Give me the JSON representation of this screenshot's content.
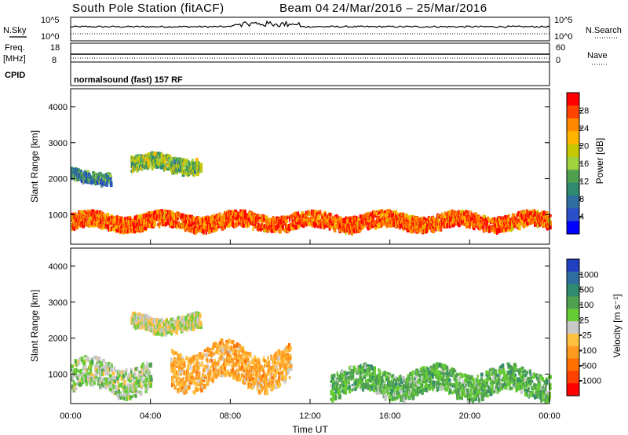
{
  "header": {
    "station": "South Pole Station (fitACF)",
    "beam": "Beam 04",
    "dates": "24/Mar/2016 – 25/Mar/2016"
  },
  "panels": {
    "nsky_label": "N.Sky",
    "nsearch_label": "N.Search",
    "nsky_ticks": [
      "10^5",
      "10^0"
    ],
    "nsearch_ticks": [
      "10^5",
      "10^0"
    ],
    "freq_label": "Freq.",
    "freq_unit": "[MHz]",
    "freq_ticks": [
      "18",
      "8"
    ],
    "nave_label": "Nave",
    "nave_ticks": [
      "60",
      "0"
    ],
    "cpid_label": "CPID",
    "cpid_value": "normalsound (fast) 157 RF"
  },
  "colorbars": {
    "power": {
      "label": "Power [dB]",
      "ticks": [
        "28",
        "24",
        "20",
        "16",
        "12",
        "8",
        "4"
      ],
      "colors": [
        "#ff0000",
        "#ff4400",
        "#ff8800",
        "#ffb400",
        "#c8c800",
        "#a0d240",
        "#50a050",
        "#2f8a70",
        "#2f6fa0",
        "#2a4fc8",
        "#0000ff"
      ]
    },
    "velocity": {
      "label": "Velocity [m s⁻¹]",
      "ticks": [
        "1000",
        "500",
        "100",
        "25",
        "-25",
        "-100",
        "-500",
        "-1000"
      ],
      "colors": [
        "#2040c0",
        "#2f6fa0",
        "#2f8a70",
        "#50a050",
        "#66cc33",
        "#c8c8c8",
        "#ffc040",
        "#ff9a20",
        "#ff7000",
        "#ff4000",
        "#ff0000"
      ]
    }
  },
  "axes": {
    "ylabel": "Slant Range [km]",
    "yticks": [
      "4000",
      "3000",
      "2000",
      "1000"
    ],
    "xlabel": "Time UT",
    "xticks": [
      "00:00",
      "04:00",
      "08:00",
      "12:00",
      "16:00",
      "20:00",
      "00:00"
    ]
  },
  "chart_data": [
    {
      "type": "heatmap",
      "title": "",
      "xlabel": "Time UT",
      "ylabel": "Slant Range [km]",
      "xlim": [
        "00:00",
        "24:00"
      ],
      "ylim": [
        180,
        4500
      ],
      "colorbar": "Power [dB]",
      "colorbar_range": [
        0,
        30
      ],
      "approx_features": [
        {
          "time_range": [
            "00:00",
            "24:00"
          ],
          "range_km": [
            600,
            1000
          ],
          "power_db": 26
        },
        {
          "time_range": [
            "03:00",
            "06:30"
          ],
          "range_km": [
            2200,
            2600
          ],
          "power_db": 14
        },
        {
          "time_range": [
            "00:00",
            "02:00"
          ],
          "range_km": [
            1900,
            2200
          ],
          "power_db": 8
        }
      ]
    },
    {
      "type": "heatmap",
      "title": "",
      "xlabel": "Time UT",
      "ylabel": "Slant Range [km]",
      "xlim": [
        "00:00",
        "24:00"
      ],
      "ylim": [
        180,
        4500
      ],
      "colorbar": "Velocity [m s⁻¹]",
      "colorbar_range": [
        -1000,
        1000
      ],
      "approx_features": [
        {
          "time_range": [
            "00:00",
            "04:00"
          ],
          "range_km": [
            500,
            1300
          ],
          "velocity_ms": 100
        },
        {
          "time_range": [
            "05:00",
            "11:00"
          ],
          "range_km": [
            700,
            1700
          ],
          "velocity_ms": -300
        },
        {
          "time_range": [
            "13:00",
            "24:00"
          ],
          "range_km": [
            400,
            1100
          ],
          "velocity_ms": 300
        },
        {
          "time_range": [
            "03:00",
            "06:30"
          ],
          "range_km": [
            2200,
            2600
          ],
          "velocity_ms": 0
        }
      ]
    }
  ]
}
